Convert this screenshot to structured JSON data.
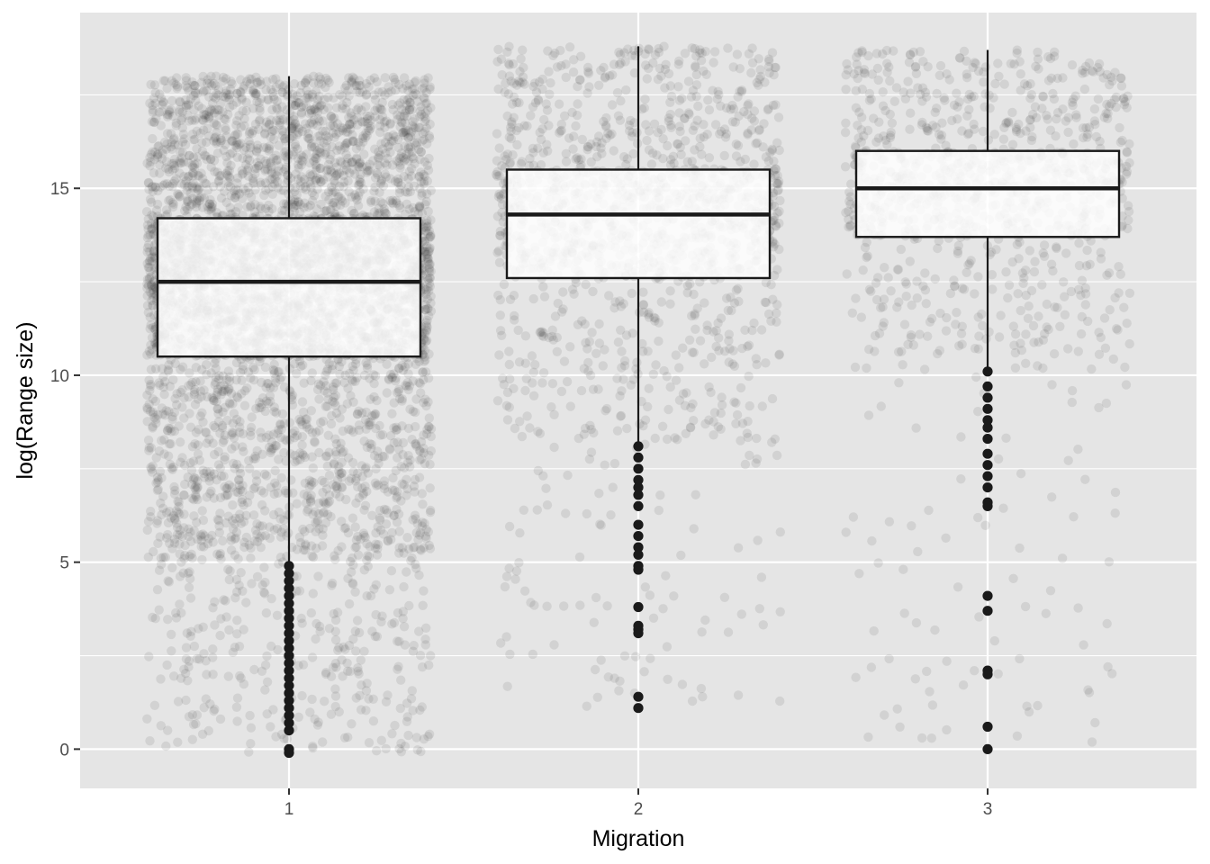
{
  "chart_data": {
    "type": "boxplot",
    "title": "",
    "xlabel": "Migration",
    "ylabel": "log(Range size)",
    "x_categories": [
      "1",
      "2",
      "3"
    ],
    "y_ticks": [
      {
        "value": 0,
        "label": "0"
      },
      {
        "value": 5,
        "label": "5"
      },
      {
        "value": 10,
        "label": "10"
      },
      {
        "value": 15,
        "label": "15"
      }
    ],
    "ylim": [
      -1.05,
      19.7
    ],
    "grid": true,
    "panel_background": "#e5e5e5",
    "grid_color": "#ffffff",
    "box_fill": "#ffffff",
    "box_stroke": "#1a1a1a",
    "jitter_color": "#333333",
    "boxes": [
      {
        "category": "1",
        "lower_whisker": 5.0,
        "q1": 10.5,
        "median": 12.5,
        "q3": 14.2,
        "upper_whisker": 18.0,
        "outliers": [
          4.9,
          4.7,
          4.5,
          4.3,
          4.1,
          3.9,
          3.7,
          3.5,
          3.3,
          3.1,
          2.9,
          2.7,
          2.5,
          2.3,
          2.1,
          1.9,
          1.7,
          1.5,
          1.3,
          1.1,
          0.9,
          0.7,
          0.5,
          0.0,
          -0.1
        ],
        "jitter_points": 5200
      },
      {
        "category": "2",
        "lower_whisker": 8.2,
        "q1": 12.6,
        "median": 14.3,
        "q3": 15.5,
        "upper_whisker": 18.8,
        "outliers": [
          8.1,
          7.8,
          7.5,
          7.2,
          7.0,
          6.8,
          6.5,
          6.0,
          5.7,
          5.4,
          5.2,
          4.9,
          4.8,
          3.8,
          3.3,
          3.2,
          3.1,
          1.4,
          1.1
        ],
        "jitter_points": 1500
      },
      {
        "category": "3",
        "lower_whisker": 10.1,
        "q1": 13.7,
        "median": 15.0,
        "q3": 16.0,
        "upper_whisker": 18.7,
        "outliers": [
          10.1,
          9.7,
          9.4,
          9.1,
          8.8,
          8.6,
          8.3,
          7.9,
          7.6,
          7.3,
          7.0,
          6.6,
          6.5,
          4.1,
          3.7,
          2.1,
          2.0,
          0.6,
          0.0
        ],
        "jitter_points": 1100
      }
    ]
  }
}
